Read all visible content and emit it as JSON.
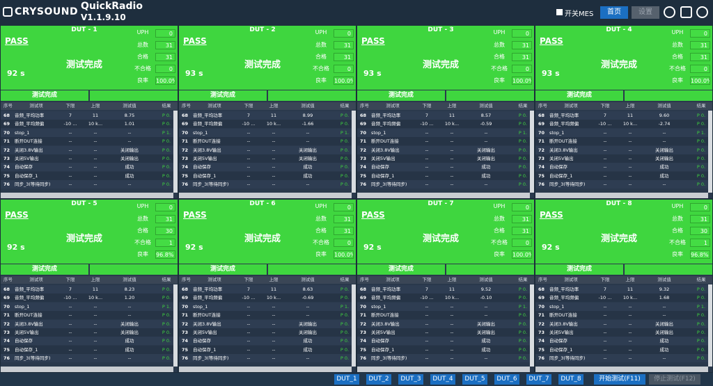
{
  "header": {
    "logo": "CRYSOUND",
    "app": "QuickRadio",
    "version": "V1.1.9.10",
    "mes": "开关MES",
    "home": "首页",
    "settings": "设置"
  },
  "stat_labels": [
    "UPH",
    "总数",
    "合格",
    "不合格",
    "良率"
  ],
  "table_columns": [
    "序号",
    "测试项",
    "下限",
    "上限",
    "测试值",
    "结果"
  ],
  "duts": [
    {
      "title": "DUT - 1",
      "status": "PASS",
      "state": "测试完成",
      "time": "92 s",
      "stats": [
        "0",
        "31",
        "31",
        "0",
        "100.0%"
      ],
      "banner": "测试完成",
      "rows": [
        [
          "68",
          "音频_平均功率",
          "7",
          "11",
          "8.75",
          "P 0."
        ],
        [
          "69",
          "音频_平均频偏",
          "-10 ...",
          "10 k...",
          "1.01",
          "P 0."
        ],
        [
          "70",
          "stop_1",
          "--",
          "--",
          "--",
          "P 1."
        ],
        [
          "71",
          "断开DUT连接",
          "--",
          "--",
          "--",
          "P 0."
        ],
        [
          "72",
          "关闭3.8V输出",
          "--",
          "--",
          "关闭输出",
          "P 0."
        ],
        [
          "73",
          "关闭5V输出",
          "--",
          "--",
          "关闭输出",
          "P 0."
        ],
        [
          "74",
          "自动保存",
          "--",
          "--",
          "成功",
          "P 0."
        ],
        [
          "75",
          "自动保存_1",
          "--",
          "--",
          "成功",
          "P 0."
        ],
        [
          "76",
          "同步_3(等待同步)",
          "--",
          "--",
          "--",
          "P 0."
        ]
      ]
    },
    {
      "title": "DUT - 2",
      "status": "PASS",
      "state": "测试完成",
      "time": "93 s",
      "stats": [
        "0",
        "31",
        "31",
        "0",
        "100.0%"
      ],
      "banner": "测试完成",
      "rows": [
        [
          "68",
          "音频_平均功率",
          "7",
          "11",
          "8.99",
          "P 0."
        ],
        [
          "69",
          "音频_平均频偏",
          "-10 ...",
          "10 k...",
          "-1.66",
          "P 0."
        ],
        [
          "70",
          "stop_1",
          "--",
          "--",
          "--",
          "P 1."
        ],
        [
          "71",
          "断开DUT连接",
          "--",
          "--",
          "--",
          "P 0."
        ],
        [
          "72",
          "关闭3.8V输出",
          "--",
          "--",
          "关闭输出",
          "P 0."
        ],
        [
          "73",
          "关闭5V输出",
          "--",
          "--",
          "关闭输出",
          "P 0."
        ],
        [
          "74",
          "自动保存",
          "--",
          "--",
          "成功",
          "P 0."
        ],
        [
          "75",
          "自动保存_1",
          "--",
          "--",
          "成功",
          "P 0."
        ],
        [
          "76",
          "同步_3(等待同步)",
          "--",
          "--",
          "--",
          "P 0."
        ]
      ]
    },
    {
      "title": "DUT - 3",
      "status": "PASS",
      "state": "测试完成",
      "time": "93 s",
      "stats": [
        "0",
        "31",
        "31",
        "0",
        "100.0%"
      ],
      "banner": "测试完成",
      "rows": [
        [
          "68",
          "音频_平均功率",
          "7",
          "11",
          "8.57",
          "P 0."
        ],
        [
          "69",
          "音频_平均频偏",
          "-10 ...",
          "10 k...",
          "-0.59",
          "P 0."
        ],
        [
          "70",
          "stop_1",
          "--",
          "--",
          "--",
          "P 1."
        ],
        [
          "71",
          "断开DUT连接",
          "--",
          "--",
          "--",
          "P 0."
        ],
        [
          "72",
          "关闭3.8V输出",
          "--",
          "--",
          "关闭输出",
          "P 0."
        ],
        [
          "73",
          "关闭5V输出",
          "--",
          "--",
          "关闭输出",
          "P 0."
        ],
        [
          "74",
          "自动保存",
          "--",
          "--",
          "成功",
          "P 0."
        ],
        [
          "75",
          "自动保存_1",
          "--",
          "--",
          "成功",
          "P 0."
        ],
        [
          "76",
          "同步_3(等待同步)",
          "--",
          "--",
          "--",
          "P 0."
        ]
      ]
    },
    {
      "title": "DUT - 4",
      "status": "PASS",
      "state": "测试完成",
      "time": "93 s",
      "stats": [
        "0",
        "31",
        "31",
        "0",
        "100.0%"
      ],
      "banner": "测试完成",
      "rows": [
        [
          "68",
          "音频_平均功率",
          "7",
          "11",
          "9.60",
          "P 0."
        ],
        [
          "69",
          "音频_平均频偏",
          "-10 ...",
          "10 k...",
          "-2.74",
          "P 0."
        ],
        [
          "70",
          "stop_1",
          "--",
          "--",
          "--",
          "P 1."
        ],
        [
          "71",
          "断开DUT连接",
          "--",
          "--",
          "--",
          "P 0."
        ],
        [
          "72",
          "关闭3.8V输出",
          "--",
          "--",
          "关闭输出",
          "P 0."
        ],
        [
          "73",
          "关闭5V输出",
          "--",
          "--",
          "关闭输出",
          "P 0."
        ],
        [
          "74",
          "自动保存",
          "--",
          "--",
          "成功",
          "P 0."
        ],
        [
          "75",
          "自动保存_1",
          "--",
          "--",
          "成功",
          "P 0."
        ],
        [
          "76",
          "同步_3(等待同步)",
          "--",
          "--",
          "--",
          "P 0."
        ]
      ]
    },
    {
      "title": "DUT - 5",
      "status": "PASS",
      "state": "测试完成",
      "time": "92 s",
      "stats": [
        "0",
        "31",
        "30",
        "1",
        "96.8%"
      ],
      "banner": "测试完成",
      "rows": [
        [
          "68",
          "音频_平均功率",
          "7",
          "11",
          "8.23",
          "P 0."
        ],
        [
          "69",
          "音频_平均频偏",
          "-10 ...",
          "10 k...",
          "1.20",
          "P 0."
        ],
        [
          "70",
          "stop_1",
          "--",
          "--",
          "--",
          "P 1."
        ],
        [
          "71",
          "断开DUT连接",
          "--",
          "--",
          "--",
          "P 0."
        ],
        [
          "72",
          "关闭3.8V输出",
          "--",
          "--",
          "关闭输出",
          "P 0."
        ],
        [
          "73",
          "关闭5V输出",
          "--",
          "--",
          "关闭输出",
          "P 0."
        ],
        [
          "74",
          "自动保存",
          "--",
          "--",
          "成功",
          "P 0."
        ],
        [
          "75",
          "自动保存_1",
          "--",
          "--",
          "成功",
          "P 0."
        ],
        [
          "76",
          "同步_3(等待同步)",
          "--",
          "--",
          "--",
          "P 0."
        ]
      ]
    },
    {
      "title": "DUT - 6",
      "status": "PASS",
      "state": "测试完成",
      "time": "92 s",
      "stats": [
        "0",
        "31",
        "31",
        "0",
        "100.0%"
      ],
      "banner": "测试完成",
      "rows": [
        [
          "68",
          "音频_平均功率",
          "7",
          "11",
          "8.63",
          "P 0."
        ],
        [
          "69",
          "音频_平均频偏",
          "-10 ...",
          "10 k...",
          "-0.69",
          "P 0."
        ],
        [
          "70",
          "stop_1",
          "--",
          "--",
          "--",
          "P 1."
        ],
        [
          "71",
          "断开DUT连接",
          "--",
          "--",
          "--",
          "P 0."
        ],
        [
          "72",
          "关闭3.8V输出",
          "--",
          "--",
          "关闭输出",
          "P 0."
        ],
        [
          "73",
          "关闭5V输出",
          "--",
          "--",
          "关闭输出",
          "P 0."
        ],
        [
          "74",
          "自动保存",
          "--",
          "--",
          "成功",
          "P 0."
        ],
        [
          "75",
          "自动保存_1",
          "--",
          "--",
          "成功",
          "P 0."
        ],
        [
          "76",
          "同步_3(等待同步)",
          "--",
          "--",
          "--",
          "P 0."
        ]
      ]
    },
    {
      "title": "DUT - 7",
      "status": "PASS",
      "state": "测试完成",
      "time": "92 s",
      "stats": [
        "0",
        "31",
        "31",
        "0",
        "100.0%"
      ],
      "banner": "测试完成",
      "rows": [
        [
          "68",
          "音频_平均功率",
          "7",
          "11",
          "9.52",
          "P 0."
        ],
        [
          "69",
          "音频_平均频偏",
          "-10 ...",
          "10 k...",
          "-0.10",
          "P 0."
        ],
        [
          "70",
          "stop_1",
          "--",
          "--",
          "--",
          "P 1."
        ],
        [
          "71",
          "断开DUT连接",
          "--",
          "--",
          "--",
          "P 0."
        ],
        [
          "72",
          "关闭3.8V输出",
          "--",
          "--",
          "关闭输出",
          "P 0."
        ],
        [
          "73",
          "关闭5V输出",
          "--",
          "--",
          "关闭输出",
          "P 0."
        ],
        [
          "74",
          "自动保存",
          "--",
          "--",
          "成功",
          "P 0."
        ],
        [
          "75",
          "自动保存_1",
          "--",
          "--",
          "成功",
          "P 0."
        ],
        [
          "76",
          "同步_3(等待同步)",
          "--",
          "--",
          "--",
          "P 0."
        ]
      ]
    },
    {
      "title": "DUT - 8",
      "status": "PASS",
      "state": "测试完成",
      "time": "92 s",
      "stats": [
        "0",
        "31",
        "30",
        "1",
        "96.8%"
      ],
      "banner": "测试完成",
      "rows": [
        [
          "68",
          "音频_平均功率",
          "7",
          "11",
          "9.32",
          "P 0."
        ],
        [
          "69",
          "音频_平均频偏",
          "-10 ...",
          "10 k...",
          "1.68",
          "P 0."
        ],
        [
          "70",
          "stop_1",
          "--",
          "--",
          "--",
          "P 1."
        ],
        [
          "71",
          "断开DUT连接",
          "--",
          "--",
          "--",
          "P 0."
        ],
        [
          "72",
          "关闭3.8V输出",
          "--",
          "--",
          "关闭输出",
          "P 0."
        ],
        [
          "73",
          "关闭5V输出",
          "--",
          "--",
          "关闭输出",
          "P 0."
        ],
        [
          "74",
          "自动保存",
          "--",
          "--",
          "成功",
          "P 0."
        ],
        [
          "75",
          "自动保存_1",
          "--",
          "--",
          "成功",
          "P 0."
        ],
        [
          "76",
          "同步_3(等待同步)",
          "--",
          "--",
          "--",
          "P 0."
        ]
      ]
    }
  ],
  "footer": {
    "dut_buttons": [
      "DUT_1",
      "DUT_2",
      "DUT_3",
      "DUT_4",
      "DUT_5",
      "DUT_6",
      "DUT_7",
      "DUT_8"
    ],
    "start": "开始测试(F11)",
    "stop": "停止测试(F12)"
  }
}
